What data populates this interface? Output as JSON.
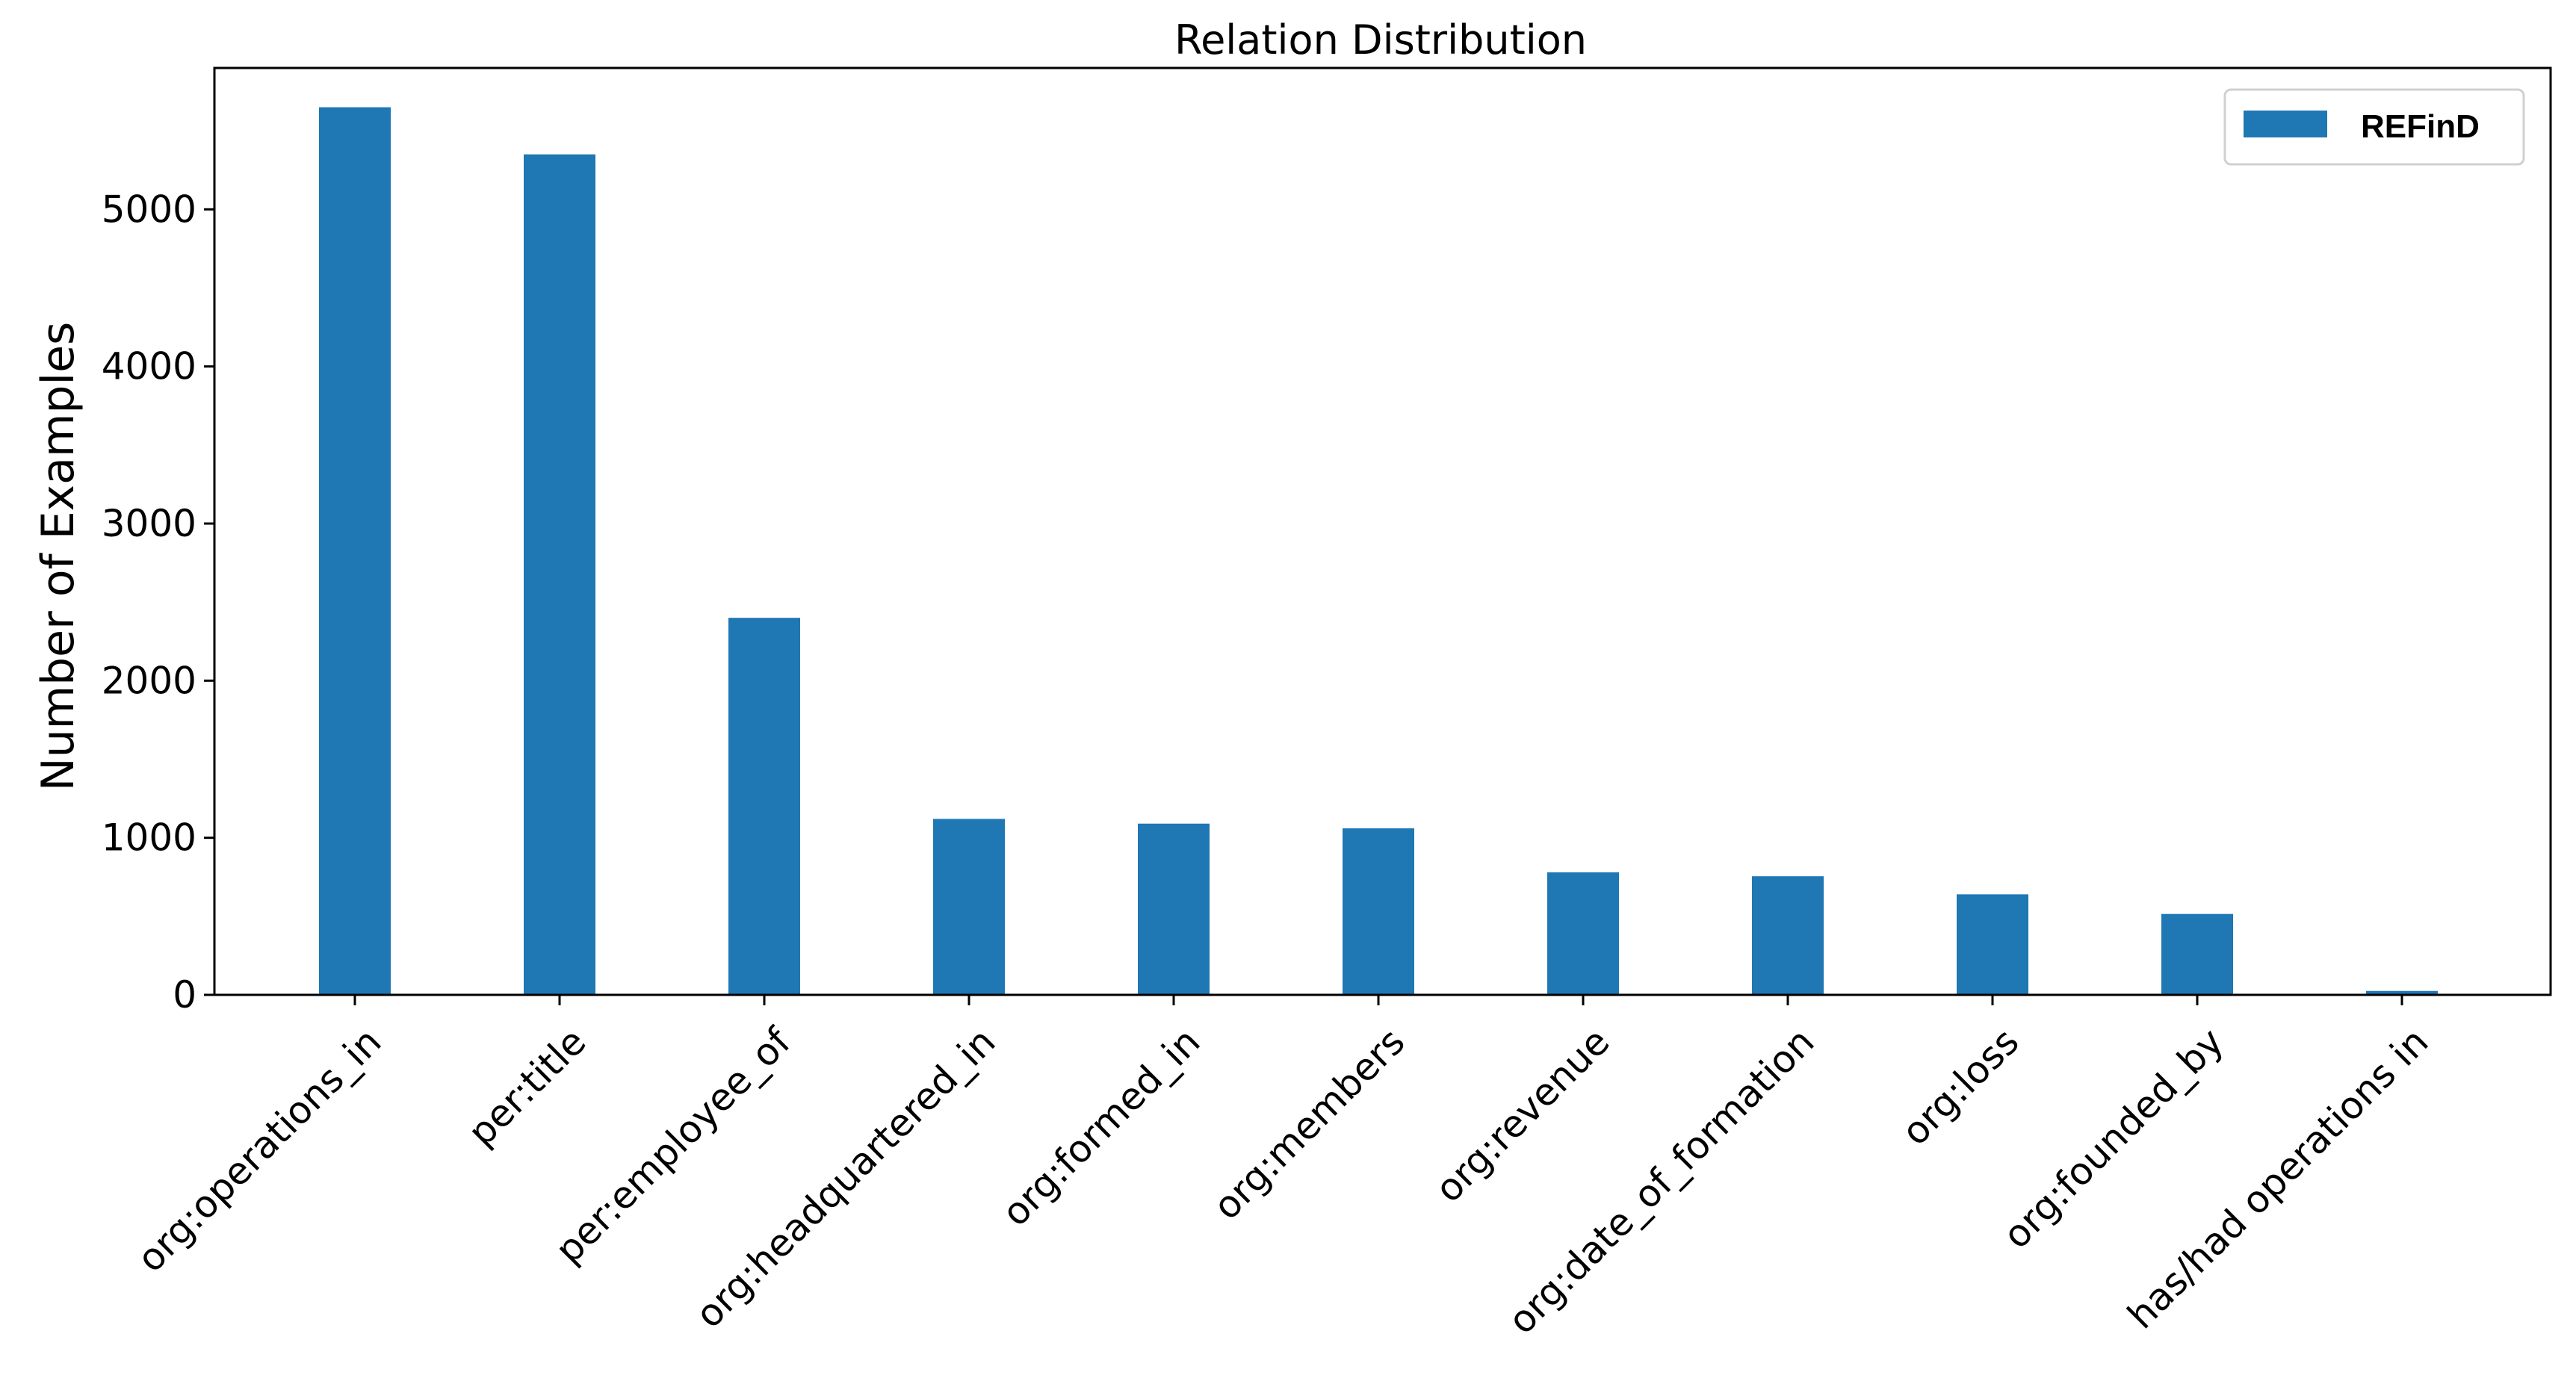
{
  "chart_data": {
    "type": "bar",
    "title": "Relation Distribution",
    "xlabel": "",
    "ylabel": "Number of Examples",
    "categories": [
      "org:operations_in",
      "per:title",
      "per:employee_of",
      "org:headquartered_in",
      "org:formed_in",
      "org:members",
      "org:revenue",
      "org:date_of_formation",
      "org:loss",
      "org:founded_by",
      "has/had operations in"
    ],
    "series": [
      {
        "name": "REFinD",
        "color": "#1f77b4",
        "values": [
          5650,
          5350,
          2400,
          1120,
          1090,
          1060,
          780,
          755,
          640,
          515,
          25
        ]
      }
    ],
    "ylim": [
      0,
      5900
    ],
    "yticks": [
      0,
      1000,
      2000,
      3000,
      4000,
      5000
    ],
    "grid": false,
    "legend": "top-right"
  }
}
